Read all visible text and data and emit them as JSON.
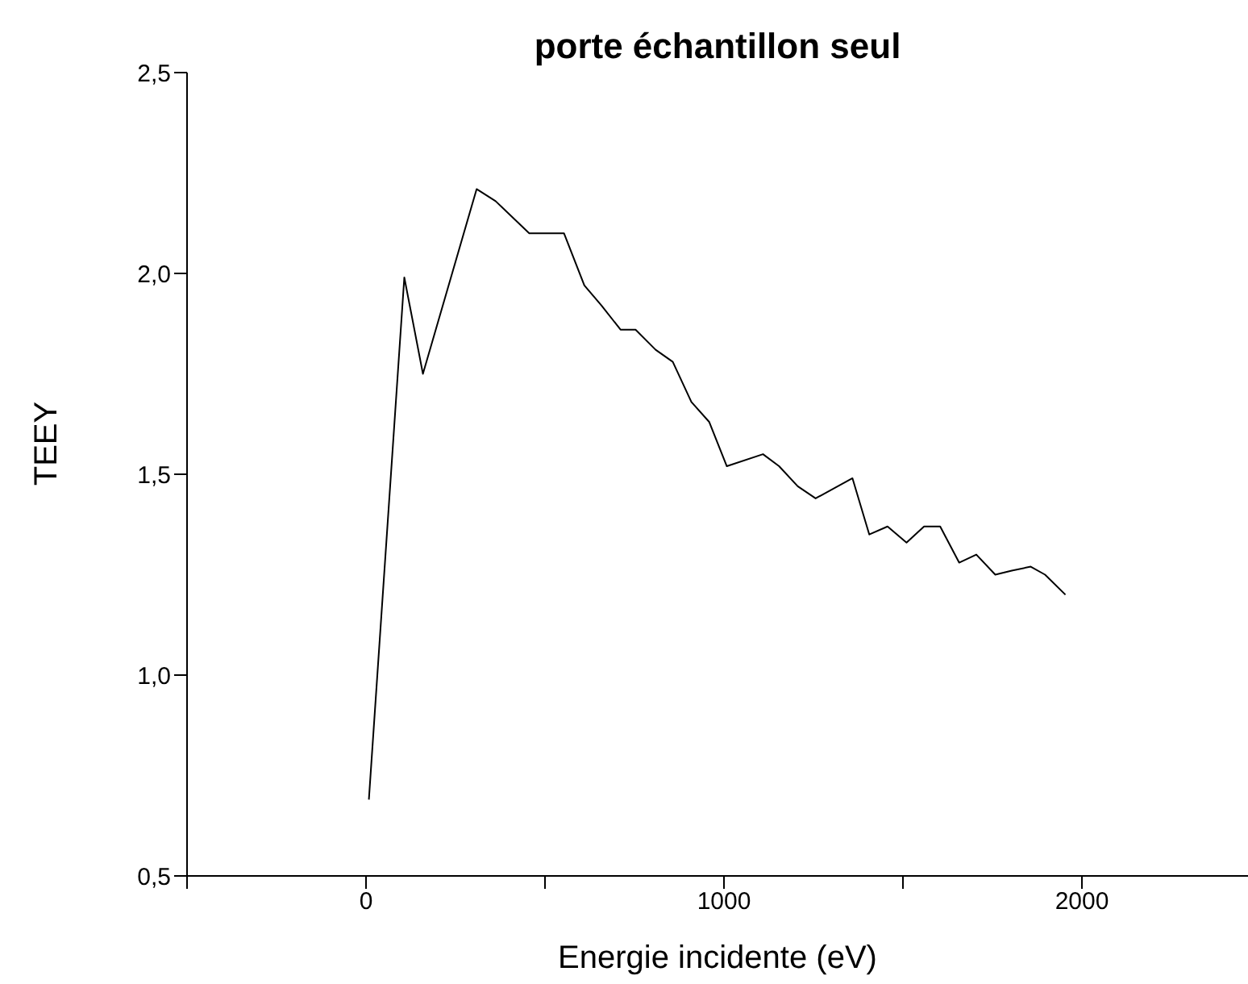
{
  "chart_data": {
    "type": "line",
    "title": "porte échantillon seul",
    "xlabel": "Energie incidente (eV)",
    "ylabel": "TEEY",
    "x": [
      8,
      107,
      159,
      309,
      362,
      456,
      553,
      610,
      658,
      711,
      753,
      809,
      857,
      909,
      959,
      1008,
      1109,
      1154,
      1206,
      1256,
      1359,
      1406,
      1457,
      1510,
      1559,
      1604,
      1657,
      1705,
      1758,
      1804,
      1857,
      1897,
      1954
    ],
    "series": [
      {
        "color": "#000000",
        "values": [
          0.69,
          1.99,
          1.75,
          2.21,
          2.18,
          2.1,
          2.1,
          1.97,
          1.92,
          1.86,
          1.86,
          1.81,
          1.78,
          1.68,
          1.63,
          1.52,
          1.55,
          1.52,
          1.47,
          1.44,
          1.49,
          1.35,
          1.37,
          1.33,
          1.37,
          1.37,
          1.28,
          1.3,
          1.25,
          1.26,
          1.27,
          1.25,
          1.2
        ]
      }
    ],
    "xlim": [
      -500,
      2500
    ],
    "xticks": [
      {
        "value": -500,
        "label": null
      },
      0,
      {
        "value": 500,
        "label": null
      },
      1000,
      {
        "value": 1500,
        "label": null
      },
      2000
    ],
    "ylim": [
      0.5,
      2.5
    ],
    "yticks": [
      {
        "value": 0.5,
        "label": "0,5"
      },
      {
        "value": 1.0,
        "label": "1,0"
      },
      {
        "value": 1.5,
        "label": "1,5"
      },
      {
        "value": 2.0,
        "label": "2,0"
      },
      {
        "value": 2.5,
        "label": "2,5"
      }
    ],
    "grid": false,
    "legend": false,
    "marker": "none",
    "line_style": "solid"
  }
}
